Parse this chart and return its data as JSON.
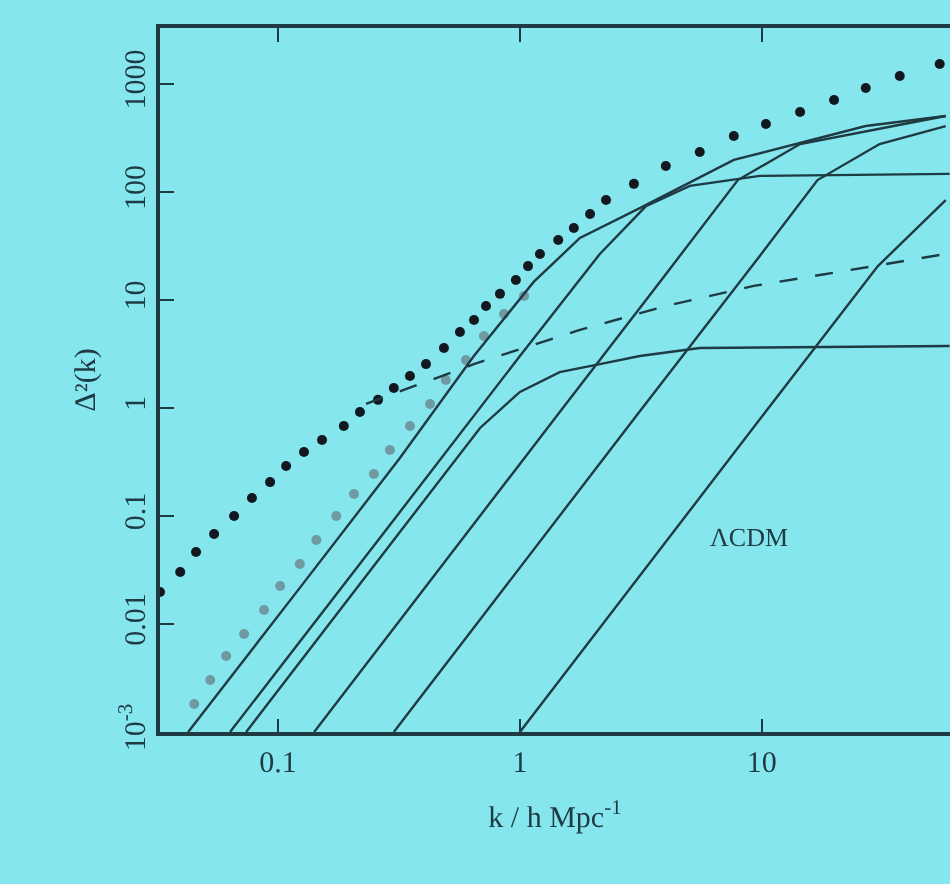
{
  "chart_data": {
    "type": "line",
    "xlabel": "k / h Mpc$^{-1}$",
    "ylabel": "Δ²(k)",
    "annotations": [
      "ΛCDM"
    ],
    "log": "xy",
    "grid": false,
    "xlim": [
      0.0325,
      60
    ],
    "xticks": [
      0.1,
      1,
      10
    ],
    "ylim": [
      0.001,
      3300
    ],
    "yticks": [
      {
        "value": 0.001,
        "label": "10$^{-3}$"
      },
      0.01,
      0.1,
      1,
      10,
      100,
      1000
    ],
    "series": [
      {
        "type": "scatter",
        "marker": "circle",
        "color": "#111820",
        "x": [
          0.0325,
          0.0394,
          0.0458,
          0.0544,
          0.0658,
          0.078,
          0.0927,
          0.108,
          0.128,
          0.152,
          0.187,
          0.218,
          0.259,
          0.301,
          0.351,
          0.409,
          0.485,
          0.565,
          0.646,
          0.724,
          0.827,
          0.962,
          1.08,
          1.21,
          1.44,
          1.67,
          1.95,
          2.27,
          2.96,
          4.01,
          5.54,
          7.66,
          10.4,
          14.4,
          19.9,
          26.9,
          37.2,
          54.4
        ],
        "values": [
          0.0198,
          0.0303,
          0.0464,
          0.068,
          0.1,
          0.147,
          0.206,
          0.29,
          0.392,
          0.506,
          0.681,
          0.918,
          1.19,
          1.53,
          1.98,
          2.55,
          3.59,
          5.05,
          6.53,
          8.8,
          11.4,
          15.3,
          20.6,
          26.7,
          35.9,
          46.4,
          62.5,
          84.3,
          119,
          174,
          235,
          330,
          426,
          550,
          711,
          918,
          1186,
          1531
        ]
      },
      {
        "type": "scatter",
        "marker": "circle",
        "color": "#6f9aa2",
        "x": [
          0.045,
          0.0524,
          0.061,
          0.0724,
          0.0875,
          0.102,
          0.123,
          0.144,
          0.174,
          0.206,
          0.249,
          0.29,
          0.351,
          0.425,
          0.494,
          0.598,
          0.71,
          0.859,
          1.04
        ],
        "values": [
          0.00182,
          0.00303,
          0.00506,
          0.00808,
          0.0135,
          0.0225,
          0.036,
          0.06,
          0.1,
          0.16,
          0.245,
          0.408,
          0.681,
          1.09,
          1.82,
          2.78,
          4.64,
          7.42,
          10.9
        ]
      },
      {
        "marker": "none",
        "line_style": "solid",
        "color": "#1e3a42",
        "x": [
          0.0425,
          0.123,
          0.319,
          0.645,
          1.14,
          1.77,
          3.13,
          7.66,
          26.9,
          57.6
        ],
        "values": [
          0.001,
          0.0216,
          0.344,
          3.03,
          14.7,
          37.5,
          71,
          198,
          408,
          506
        ]
      },
      {
        "marker": "none",
        "line_style": "solid",
        "color": "#1e3a42",
        "x": [
          0.0633,
          0.319,
          1,
          2.14,
          3.32,
          5.04,
          9.81,
          59.8
        ],
        "values": [
          0.001,
          0.109,
          3.03,
          26.7,
          74.1,
          114,
          141,
          147
        ]
      },
      {
        "marker": "none",
        "line_style": "solid",
        "color": "#1e3a42",
        "x": [
          0.0738,
          0.319,
          0.684,
          1,
          1.46,
          2.14,
          3.13,
          5.54,
          59.8
        ],
        "values": [
          0.001,
          0.0711,
          0.653,
          1.41,
          2.15,
          2.55,
          3.03,
          3.59,
          3.75
        ]
      },
      {
        "marker": "none",
        "line_style": "solid",
        "color": "#1e3a42",
        "x": [
          0.141,
          1.44,
          3.79,
          7.96,
          14.4,
          35.1,
          57.6
        ],
        "values": [
          0.001,
          0.88,
          14.7,
          129,
          278,
          408,
          506
        ]
      },
      {
        "marker": "none",
        "line_style": "solid",
        "color": "#1e3a42",
        "x": [
          0.301,
          3.07,
          9.81,
          17,
          30.7,
          57.6
        ],
        "values": [
          0.001,
          0.88,
          25.6,
          129,
          278,
          408
        ]
      },
      {
        "marker": "none",
        "line_style": "solid",
        "color": "#1e3a42",
        "x": [
          1,
          10.2,
          30.2,
          57.6
        ],
        "values": [
          0.001,
          0.88,
          20.6,
          84.3
        ]
      },
      {
        "marker": "none",
        "line_style": "dashed",
        "color": "#1e3a42",
        "x": [
          0.231,
          0.645,
          1.77,
          4.01,
          9.27,
          32.5,
          57.6
        ],
        "values": [
          1.09,
          2.55,
          5.28,
          8.8,
          13.5,
          21.5,
          26.7
        ]
      }
    ]
  }
}
